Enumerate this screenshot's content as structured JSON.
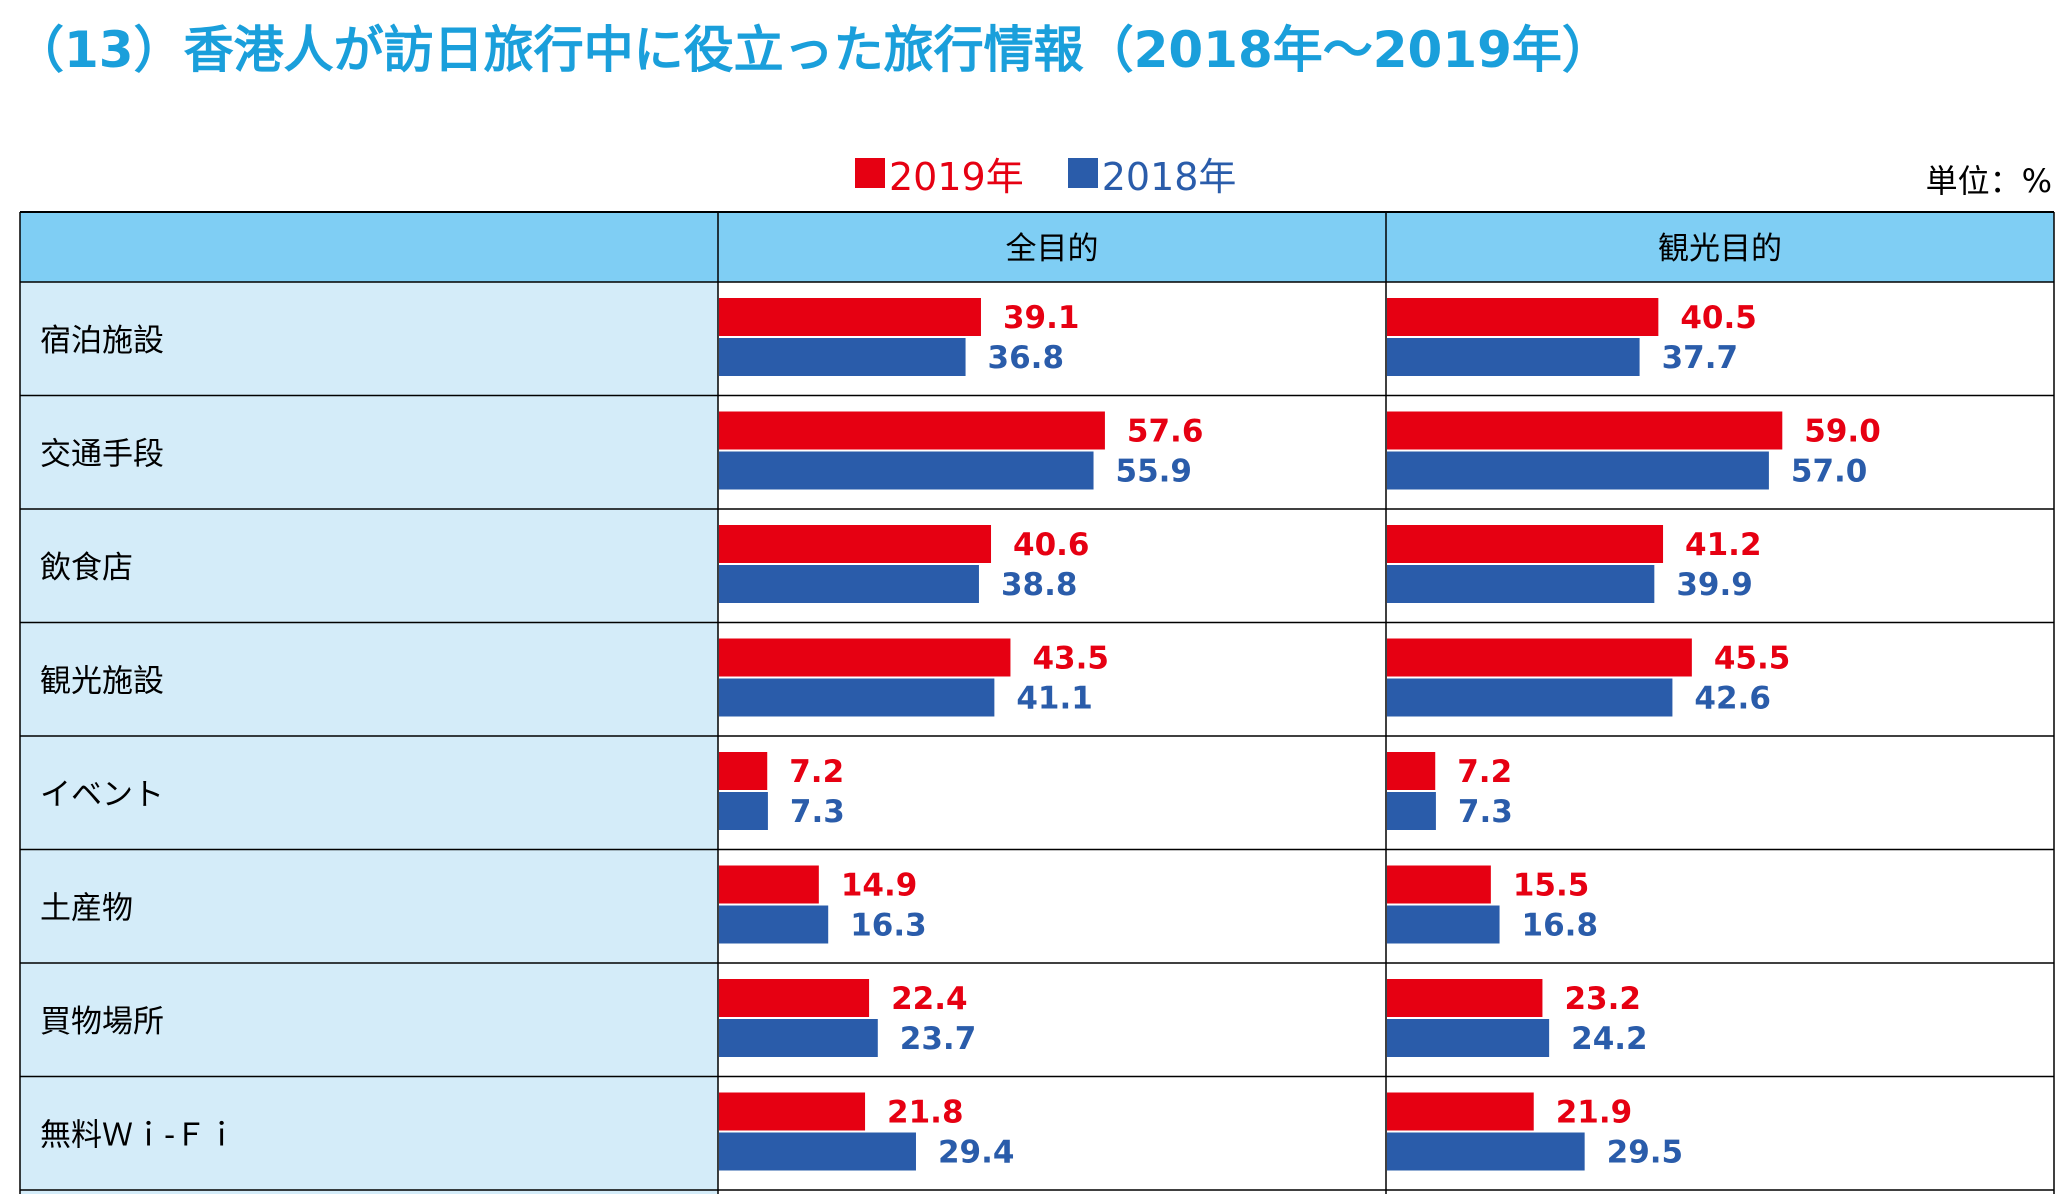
{
  "title": "（13）香港人が訪日旅行中に役立った旅行情報（2018年～2019年）",
  "unit_label": "単位：%",
  "colors": {
    "2019": "#e60012",
    "2018": "#2a5caa",
    "header_bg": "#7fcef4",
    "label_bg": "#d4ecf9",
    "title": "#1a9fdb"
  },
  "chart_data": {
    "type": "bar",
    "orientation": "horizontal",
    "title": "（13）香港人が訪日旅行中に役立った旅行情報（2018年～2019年）",
    "unit": "単位：%",
    "legend_position": "top",
    "panels": [
      {
        "header": "全目的",
        "xlim": [
          0,
          100
        ]
      },
      {
        "header": "観光目的",
        "xlim": [
          0,
          100
        ]
      }
    ],
    "categories": [
      "宿泊施設",
      "交通手段",
      "飲食店",
      "観光施設",
      "イベント",
      "土産物",
      "買物場所",
      "無料Ｗｉ-Ｆｉ"
    ],
    "series": [
      {
        "name": "2019年",
        "color": "#e60012",
        "values": {
          "全目的": [
            39.1,
            57.6,
            40.6,
            43.5,
            7.2,
            14.9,
            22.4,
            21.8
          ],
          "観光目的": [
            40.5,
            59.0,
            41.2,
            45.5,
            7.2,
            15.5,
            23.2,
            21.9
          ]
        }
      },
      {
        "name": "2018年",
        "color": "#2a5caa",
        "values": {
          "全目的": [
            36.8,
            55.9,
            38.8,
            41.1,
            7.3,
            16.3,
            23.7,
            29.4
          ],
          "観光目的": [
            37.7,
            57.0,
            39.9,
            42.6,
            7.3,
            16.8,
            24.2,
            29.5
          ]
        }
      }
    ]
  }
}
